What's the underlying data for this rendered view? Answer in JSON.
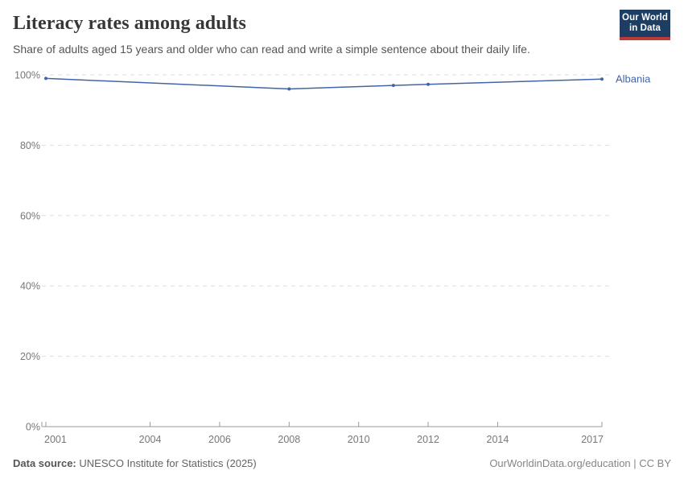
{
  "header": {
    "title": "Literacy rates among adults",
    "subtitle": "Share of adults aged 15 years and older who can read and write a simple sentence about their daily life."
  },
  "logo": {
    "line1": "Our World",
    "line2": "in Data",
    "bg_color": "#1d3d63",
    "bar_color": "#bf3a34"
  },
  "chart_data": {
    "type": "line",
    "title": "Literacy rates among adults",
    "x": [
      2001,
      2008,
      2011,
      2012,
      2017
    ],
    "series": [
      {
        "name": "Albania",
        "values": [
          99,
          96,
          97,
          97.3,
          98.8
        ],
        "color": "#4165a8"
      }
    ],
    "xlabel": "",
    "ylabel": "",
    "xlim": [
      2001,
      2017
    ],
    "ylim": [
      0,
      100
    ],
    "yticks": [
      0,
      20,
      40,
      60,
      80,
      100
    ],
    "ytick_labels": [
      "0%",
      "20%",
      "40%",
      "60%",
      "80%",
      "100%"
    ],
    "xticks": [
      2001,
      2004,
      2006,
      2008,
      2010,
      2012,
      2014,
      2017
    ],
    "xtick_labels": [
      "2001",
      "2004",
      "2006",
      "2008",
      "2010",
      "2012",
      "2014",
      "2017"
    ],
    "grid": "horizontal-dashed",
    "legend_position": "end-of-line-label",
    "entity_label": "Albania"
  },
  "footer": {
    "datasource_label": "Data source:",
    "datasource_value": "UNESCO Institute for Statistics (2025)",
    "credit": "OurWorldinData.org/education | CC BY"
  },
  "colors": {
    "line": "#4165a8",
    "grid": "#dedede",
    "axis": "#999999",
    "tick_text": "#777777",
    "title_text": "#373737",
    "subtitle_text": "#555555"
  }
}
